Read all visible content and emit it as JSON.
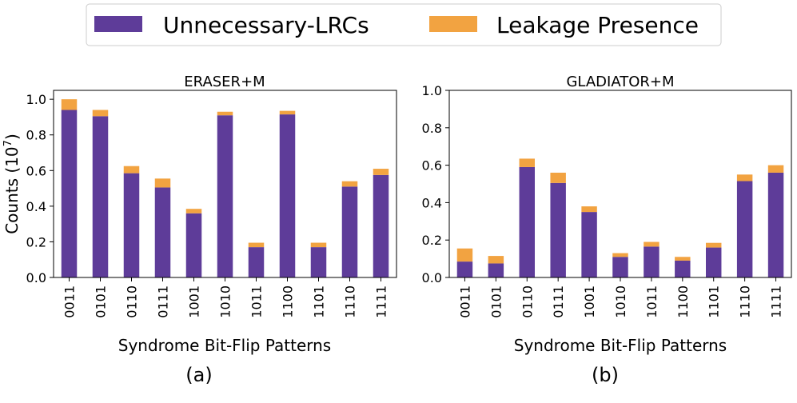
{
  "legend": {
    "items": [
      {
        "label": "Unnecessary-LRCs",
        "color": "#5e3c99"
      },
      {
        "label": "Leakage Presence",
        "color": "#f2a341"
      }
    ]
  },
  "chart_data": [
    {
      "type": "bar",
      "stacked": true,
      "title": "ERASER+M",
      "xlabel": "Syndrome Bit-Flip Patterns",
      "ylabel": "Counts (10",
      "ylabel_sup": "7",
      "ylabel_end": ")",
      "caption": "(a)",
      "ylim": [
        0,
        1.05
      ],
      "yticks": [
        "0.0",
        "0.2",
        "0.4",
        "0.6",
        "0.8",
        "1.0"
      ],
      "categories": [
        "0011",
        "0101",
        "0110",
        "0111",
        "1001",
        "1010",
        "1011",
        "1100",
        "1101",
        "1110",
        "1111"
      ],
      "series": [
        {
          "name": "Unnecessary-LRCs",
          "color": "#5e3c99",
          "values": [
            0.94,
            0.905,
            0.585,
            0.505,
            0.36,
            0.91,
            0.17,
            0.915,
            0.17,
            0.51,
            0.575
          ]
        },
        {
          "name": "Leakage Presence",
          "color": "#f2a341",
          "values": [
            0.06,
            0.035,
            0.04,
            0.05,
            0.025,
            0.02,
            0.025,
            0.02,
            0.025,
            0.03,
            0.035
          ]
        }
      ]
    },
    {
      "type": "bar",
      "stacked": true,
      "title": "GLADIATOR+M",
      "xlabel": "Syndrome Bit-Flip Patterns",
      "caption": "(b)",
      "ylim": [
        0,
        1.0
      ],
      "yticks": [
        "0.0",
        "0.2",
        "0.4",
        "0.6",
        "0.8",
        "1.0"
      ],
      "categories": [
        "0011",
        "0101",
        "0110",
        "0111",
        "1001",
        "1010",
        "1011",
        "1100",
        "1101",
        "1110",
        "1111"
      ],
      "series": [
        {
          "name": "Unnecessary-LRCs",
          "color": "#5e3c99",
          "values": [
            0.085,
            0.075,
            0.59,
            0.505,
            0.35,
            0.11,
            0.165,
            0.09,
            0.16,
            0.515,
            0.56
          ]
        },
        {
          "name": "Leakage Presence",
          "color": "#f2a341",
          "values": [
            0.07,
            0.04,
            0.045,
            0.055,
            0.03,
            0.02,
            0.025,
            0.02,
            0.025,
            0.035,
            0.04
          ]
        }
      ]
    }
  ]
}
